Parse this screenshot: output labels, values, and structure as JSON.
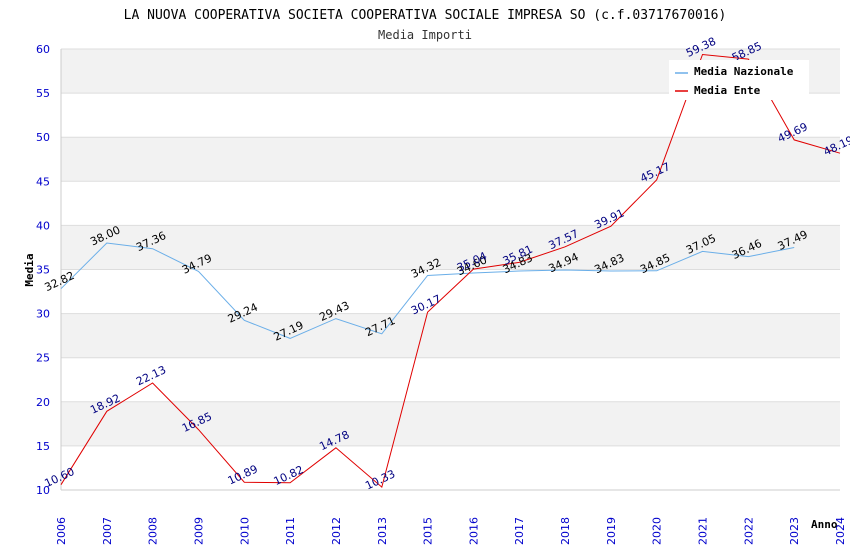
{
  "chart_data": {
    "type": "line",
    "title": "LA NUOVA COOPERATIVA SOCIETA COOPERATIVA SOCIALE IMPRESA SO (c.f.03717670016)",
    "subtitle": "Media Importi",
    "xlabel": "Anno",
    "ylabel": "Media",
    "ylim": [
      10,
      60
    ],
    "yticks": [
      "10",
      "15",
      "20",
      "25",
      "30",
      "35",
      "40",
      "45",
      "50",
      "55",
      "60"
    ],
    "categories": [
      "2006",
      "2007",
      "2008",
      "2009",
      "2010",
      "2011",
      "2012",
      "2013",
      "2015",
      "2016",
      "2017",
      "2018",
      "2019",
      "2020",
      "2021",
      "2022",
      "2023",
      "2024"
    ],
    "series": [
      {
        "name": "Media Nazionale",
        "color": "#6aaee8",
        "values": [
          32.82,
          38.0,
          37.36,
          34.79,
          29.24,
          27.19,
          29.43,
          27.71,
          34.32,
          34.6,
          34.83,
          34.94,
          34.83,
          34.85,
          37.05,
          36.46,
          37.49,
          null
        ],
        "labels": [
          "32.82",
          "38.00",
          "37.36",
          "34.79",
          "29.24",
          "27.19",
          "29.43",
          "27.71",
          "34.32",
          "34.60",
          "34.83",
          "34.94",
          "34.83",
          "34.85",
          "37.05",
          "36.46",
          "37.49",
          ""
        ]
      },
      {
        "name": "Media Ente",
        "color": "#e00000",
        "values": [
          10.6,
          18.92,
          22.13,
          16.85,
          10.89,
          10.82,
          14.78,
          10.33,
          30.17,
          35.04,
          35.81,
          37.57,
          39.91,
          45.17,
          59.38,
          58.85,
          49.69,
          48.19
        ],
        "labels": [
          "10.60",
          "18.92",
          "22.13",
          "16.85",
          "10.89",
          "10.82",
          "14.78",
          "10.33",
          "30.17",
          "35.04",
          "35.81",
          "37.57",
          "39.91",
          "45.17",
          "59.38",
          "58.85",
          "49.69",
          "48.19"
        ]
      }
    ],
    "legend": "top-right",
    "grid": true
  }
}
